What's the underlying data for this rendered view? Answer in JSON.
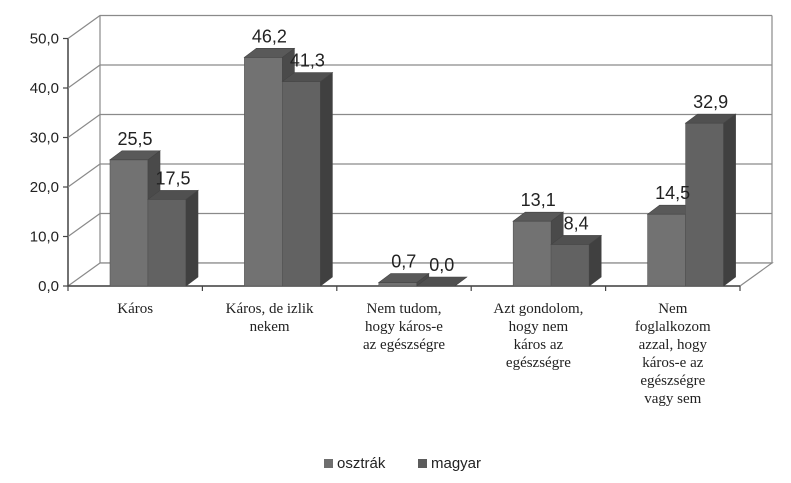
{
  "chart_data": {
    "type": "bar",
    "categories": [
      "Káros",
      "Káros, de izlik nekem",
      "Nem tudom, hogy káros-e az egészségre",
      "Azt gondolom, hogy nem káros az egészségre",
      "Nem foglalkozom azzal, hogy káros-e az egészségre vagy sem"
    ],
    "category_lines": [
      [
        "Káros"
      ],
      [
        "Káros, de izlik",
        "nekem"
      ],
      [
        "Nem tudom,",
        "hogy káros-e",
        "az egészségre"
      ],
      [
        "Azt gondolom,",
        "hogy nem",
        "káros az",
        "egészségre"
      ],
      [
        "Nem",
        "foglalkozom",
        "azzal, hogy",
        "káros-e az",
        "egészségre",
        "vagy sem"
      ]
    ],
    "series": [
      {
        "name": "osztrák",
        "values": [
          25.5,
          46.2,
          0.7,
          13.1,
          14.5
        ],
        "labels": [
          "25,5",
          "46,2",
          "0,7",
          "13,1",
          "14,5"
        ]
      },
      {
        "name": "magyar",
        "values": [
          17.5,
          41.3,
          0.0,
          8.4,
          32.9
        ],
        "labels": [
          "17,5",
          "41,3",
          "0,0",
          "8,4",
          "32,9"
        ]
      }
    ],
    "y_ticks": [
      "0,0",
      "10,0",
      "20,0",
      "30,0",
      "40,0",
      "50,0"
    ],
    "ylim": [
      0,
      50
    ],
    "grid": true,
    "legend_position": "bottom",
    "three_d": true,
    "colors": {
      "osztrak": "#6e6e6e",
      "magyar": "#5c5c5c"
    }
  }
}
